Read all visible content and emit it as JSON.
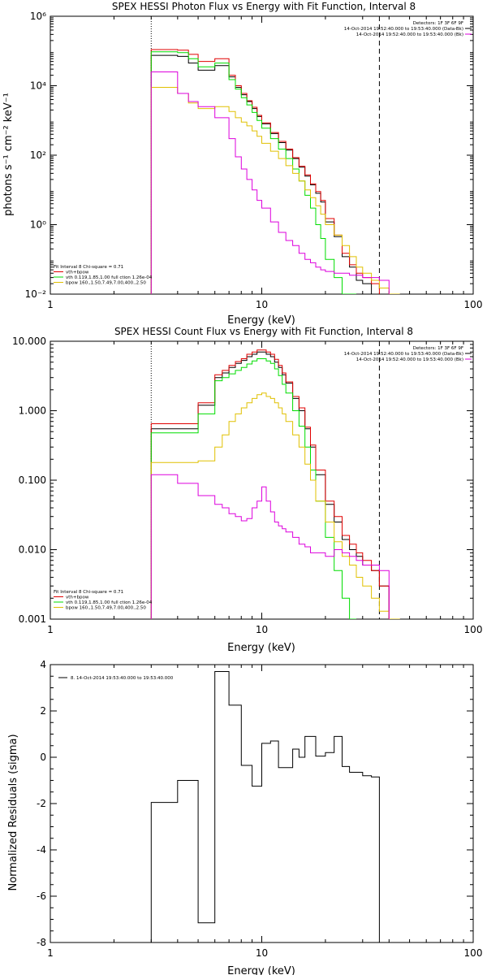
{
  "colors": {
    "data": "#000000",
    "total": "#e00000",
    "vth": "#00dd00",
    "bpow": "#e0c000",
    "bk": "#dd00dd"
  },
  "chart_data": [
    {
      "type": "line",
      "title": "SPEX HESSI Photon Flux vs Energy with Fit Function, Interval 8",
      "xlabel": "Energy (keV)",
      "ylabel": "photons s⁻¹ cm⁻² keV⁻¹",
      "xscale": "log",
      "yscale": "log",
      "xlim": [
        1,
        100
      ],
      "ylim": [
        0.01,
        1000000
      ],
      "xticks": [
        1,
        10,
        100
      ],
      "xtick_labels": [
        "1",
        "10",
        "100"
      ],
      "yticks": [
        0.01,
        1,
        100,
        10000,
        1000000
      ],
      "ytick_labels": [
        "10⁻²",
        "10⁰",
        "10²",
        "10⁴",
        "10⁶"
      ],
      "vlines": [
        {
          "x": 3,
          "style": "dotted"
        },
        {
          "x": 36,
          "style": "dashed"
        }
      ],
      "legend_top": [
        "Detectors: 1F 3F 6F 9F",
        "14-Oct-2014 19:52:40.000 to 19:53:40.000 (Data-Bk)",
        "14-Oct-2014 19:52:40.000 to 19:53:40.000 (Bk)"
      ],
      "legend_top_colors": [
        "#000000",
        "#000000",
        "#dd00dd"
      ],
      "legend_bottom": [
        "Fit Interval 8   Chi-square = 0.71",
        "vth+bpow",
        "vth 0.119,1.85,1.00  full ction 1.26e-04",
        "bpow 160.,1.50,7.49,7.00,400.,2.50"
      ],
      "legend_bottom_colors": [
        "#000000",
        "#e00000",
        "#00dd00",
        "#e0c000"
      ],
      "edges": [
        3.0,
        3.5,
        4.0,
        4.5,
        5.0,
        5.5,
        6.0,
        6.5,
        7.0,
        7.5,
        8.0,
        8.5,
        9.0,
        9.5,
        10.0,
        11.0,
        12.0,
        13.0,
        14.0,
        15.0,
        16.0,
        17.0,
        18.0,
        19.0,
        20.0,
        22.0,
        24.0,
        26.0,
        28.0,
        30.0,
        33.0,
        36.0,
        40.0,
        45.0,
        50.0
      ],
      "series": [
        {
          "color": "#000000",
          "values": [
            75000,
            75000,
            70000,
            45000,
            28000,
            28000,
            38000,
            38000,
            18000,
            9000,
            5500,
            3500,
            2200,
            1300,
            800,
            420,
            230,
            140,
            80,
            45,
            25,
            14,
            8,
            4.5,
            1.2,
            0.45,
            0.12,
            0.06,
            0.025,
            0.02,
            0.01,
            null,
            null,
            null
          ]
        },
        {
          "color": "#e00000",
          "values": [
            110000,
            110000,
            105000,
            80000,
            50000,
            50000,
            60000,
            60000,
            20000,
            10000,
            6000,
            3700,
            2400,
            1400,
            850,
            450,
            250,
            150,
            85,
            48,
            27,
            15,
            9,
            5,
            1.5,
            0.5,
            0.15,
            0.07,
            0.04,
            0.03,
            0.02,
            null,
            null,
            null
          ]
        },
        {
          "color": "#00dd00",
          "values": [
            95000,
            95000,
            90000,
            60000,
            35000,
            35000,
            45000,
            45000,
            15000,
            8000,
            4500,
            2800,
            1700,
            1000,
            600,
            300,
            150,
            80,
            40,
            18,
            7,
            3,
            1,
            0.4,
            0.1,
            0.03,
            0.01,
            0.003,
            null,
            null,
            null,
            null,
            null,
            null
          ]
        },
        {
          "color": "#e0c000",
          "values": [
            9000,
            9000,
            6000,
            3200,
            2200,
            2200,
            2500,
            2500,
            1800,
            1200,
            900,
            700,
            500,
            350,
            220,
            130,
            80,
            50,
            30,
            18,
            10,
            6,
            3.5,
            2,
            1.0,
            0.5,
            0.25,
            0.12,
            0.06,
            0.04,
            0.025,
            0.015,
            0.01,
            null
          ]
        },
        {
          "color": "#dd00dd",
          "values": [
            25000,
            25000,
            6000,
            3500,
            2500,
            2500,
            1200,
            1200,
            300,
            90,
            40,
            20,
            10,
            5,
            3,
            1.2,
            0.6,
            0.35,
            0.25,
            0.15,
            0.1,
            0.08,
            0.06,
            0.05,
            0.045,
            0.04,
            0.04,
            0.035,
            0.035,
            0.03,
            0.03,
            0.025,
            null,
            null
          ]
        }
      ]
    },
    {
      "type": "line",
      "title": "SPEX HESSI Count Flux vs Energy with Fit Function, Interval 8",
      "xlabel": "Energy (keV)",
      "ylabel": "",
      "xscale": "log",
      "yscale": "log",
      "xlim": [
        1,
        100
      ],
      "ylim": [
        0.001,
        10
      ],
      "xticks": [
        1,
        10,
        100
      ],
      "xtick_labels": [
        "1",
        "10",
        "100"
      ],
      "yticks": [
        0.001,
        0.01,
        0.1,
        1,
        10
      ],
      "ytick_labels": [
        "0.001",
        "0.010",
        "0.100",
        "1.000",
        "10.000"
      ],
      "vlines": [
        {
          "x": 3,
          "style": "dotted"
        },
        {
          "x": 36,
          "style": "dashed"
        }
      ],
      "legend_top": [
        "Detectors: 1F 3F 6F 9F",
        "14-Oct-2014 19:52:40.000 to 19:53:40.000 (Data-Bk)",
        "14-Oct-2014 19:52:40.000 to 19:53:40.000 (Bk)"
      ],
      "legend_top_colors": [
        "#000000",
        "#000000",
        "#dd00dd"
      ],
      "legend_bottom": [
        "Fit Interval 8   Chi-square = 0.71",
        "vth+bpow",
        "vth 0.119,1.85,1.00  full ction 1.26e-04",
        "bpow 160.,1.50,7.49,7.00,400.,2.50"
      ],
      "legend_bottom_colors": [
        "#000000",
        "#e00000",
        "#00dd00",
        "#e0c000"
      ],
      "edges": [
        3.0,
        4.0,
        5.0,
        6.0,
        6.5,
        7.0,
        7.5,
        8.0,
        8.5,
        9.0,
        9.5,
        10.0,
        10.5,
        11.0,
        11.5,
        12.0,
        12.5,
        13.0,
        14.0,
        15.0,
        16.0,
        17.0,
        18.0,
        20.0,
        22.0,
        24.0,
        26.0,
        28.0,
        30.0,
        33.0,
        36.0,
        40.0,
        45.0
      ],
      "series": [
        {
          "color": "#000000",
          "values": [
            0.55,
            0.55,
            1.2,
            3.0,
            3.5,
            4.2,
            4.8,
            5.3,
            6.0,
            6.5,
            7.0,
            7.0,
            6.5,
            6.0,
            5.0,
            4.2,
            3.3,
            2.5,
            1.5,
            1.0,
            0.55,
            0.3,
            0.12,
            0.045,
            0.025,
            0.014,
            0.01,
            0.008,
            0.006,
            0.005,
            0.003,
            0.001
          ]
        },
        {
          "color": "#e00000",
          "values": [
            0.65,
            0.65,
            1.3,
            3.3,
            3.8,
            4.5,
            5.1,
            5.6,
            6.5,
            7.0,
            7.5,
            7.5,
            7.0,
            6.5,
            5.5,
            4.5,
            3.5,
            2.6,
            1.6,
            1.1,
            0.58,
            0.32,
            0.14,
            0.05,
            0.03,
            0.016,
            0.012,
            0.009,
            0.007,
            0.005,
            0.003,
            0.001
          ]
        },
        {
          "color": "#00dd00",
          "values": [
            0.48,
            0.48,
            0.9,
            2.7,
            3.0,
            3.4,
            3.8,
            4.2,
            4.7,
            5.2,
            5.6,
            5.6,
            5.2,
            4.8,
            4.0,
            3.2,
            2.4,
            1.8,
            1.0,
            0.6,
            0.3,
            0.14,
            0.05,
            0.015,
            0.005,
            0.002,
            0.001,
            null,
            null,
            null,
            null,
            null
          ]
        },
        {
          "color": "#e0c000",
          "values": [
            0.18,
            0.18,
            0.19,
            0.3,
            0.45,
            0.7,
            0.9,
            1.1,
            1.3,
            1.5,
            1.7,
            1.8,
            1.6,
            1.5,
            1.3,
            1.1,
            0.9,
            0.7,
            0.45,
            0.3,
            0.17,
            0.1,
            0.05,
            0.025,
            0.013,
            0.008,
            0.006,
            0.004,
            0.003,
            0.002,
            0.0013,
            0.001
          ]
        },
        {
          "color": "#dd00dd",
          "values": [
            0.12,
            0.09,
            0.06,
            0.045,
            0.04,
            0.033,
            0.03,
            0.026,
            0.028,
            0.04,
            0.05,
            0.08,
            0.05,
            0.035,
            0.025,
            0.022,
            0.02,
            0.018,
            0.015,
            0.012,
            0.011,
            0.009,
            0.009,
            0.008,
            0.01,
            0.009,
            0.008,
            0.007,
            0.006,
            0.006,
            0.005,
            null
          ]
        }
      ]
    },
    {
      "type": "line",
      "title": "",
      "xlabel": "Energy (keV)",
      "ylabel": "Normalized Residuals (sigma)",
      "xscale": "log",
      "yscale": "linear",
      "xlim": [
        1,
        100
      ],
      "ylim": [
        -8,
        4
      ],
      "xticks": [
        1,
        10,
        100
      ],
      "xtick_labels": [
        "1",
        "10",
        "100"
      ],
      "yticks": [
        -8,
        -6,
        -4,
        -2,
        0,
        2,
        4
      ],
      "ytick_labels": [
        "-8",
        "-6",
        "-4",
        "-2",
        "0",
        "2",
        "4"
      ],
      "legend_top": [
        "8. 14-Oct-2014 19:53:40.000 to 19:53:40.000"
      ],
      "edges": [
        3.0,
        3.5,
        4.0,
        4.5,
        5.0,
        5.5,
        6.0,
        6.5,
        7.0,
        7.5,
        8.0,
        8.5,
        9.0,
        9.5,
        10.0,
        11.0,
        12.0,
        13.0,
        14.0,
        15.0,
        16.0,
        17.0,
        18.0,
        19.0,
        20.0,
        22.0,
        24.0,
        26.0,
        28.0,
        30.0,
        33.0,
        36.0
      ],
      "series": [
        {
          "color": "#000000",
          "values": [
            -1.95,
            -1.95,
            -1.0,
            -1.0,
            -7.15,
            -7.15,
            3.7,
            3.7,
            2.25,
            2.25,
            -0.35,
            -0.35,
            -1.25,
            -1.25,
            0.6,
            0.7,
            -0.45,
            -0.45,
            0.35,
            0.0,
            0.9,
            0.9,
            0.05,
            0.05,
            0.2,
            0.9,
            -0.4,
            -0.65,
            -0.65,
            -0.8,
            -0.85
          ]
        }
      ]
    }
  ]
}
